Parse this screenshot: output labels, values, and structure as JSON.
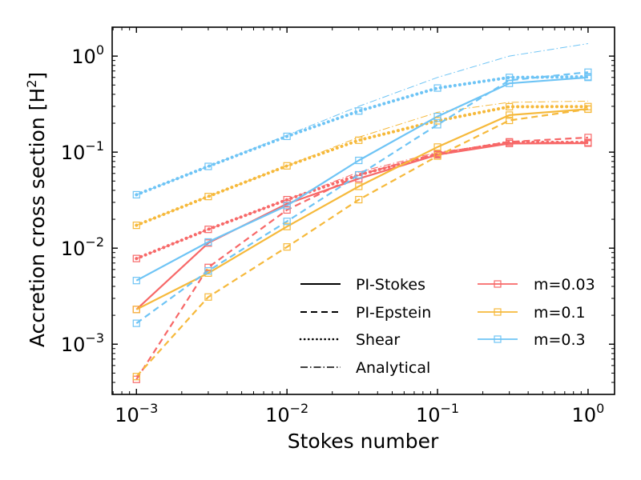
{
  "chart_data": {
    "type": "line",
    "xlabel": "Stokes number",
    "ylabel": "Accretion cross section [H",
    "ylabel_sup": "2",
    "ylabel_end": "]",
    "xscale": "log",
    "yscale": "log",
    "xlim": [
      0.00069,
      1.5
    ],
    "ylim": [
      0.0003,
      2.0
    ],
    "xticks": [
      {
        "value": 0.001,
        "base": "10",
        "exp": "−3"
      },
      {
        "value": 0.01,
        "base": "10",
        "exp": "−2"
      },
      {
        "value": 0.1,
        "base": "10",
        "exp": "−1"
      },
      {
        "value": 1,
        "base": "10",
        "exp": "0"
      }
    ],
    "yticks": [
      {
        "value": 0.001,
        "base": "10",
        "exp": "−3"
      },
      {
        "value": 0.01,
        "base": "10",
        "exp": "−2"
      },
      {
        "value": 0.1,
        "base": "10",
        "exp": "−1"
      },
      {
        "value": 1,
        "base": "10",
        "exp": "0"
      }
    ],
    "x": [
      0.001,
      0.003,
      0.01,
      0.03,
      0.1,
      0.3,
      1
    ],
    "colors": {
      "m=0.03": "#f76868",
      "m=0.1": "#f6b93b",
      "m=0.3": "#6ec4f5"
    },
    "series": [
      {
        "name": "PI-Stokes m=0.03",
        "mass": "m=0.03",
        "style": "solid",
        "values": [
          0.0023,
          0.0113,
          0.029,
          0.053,
          0.094,
          0.123,
          0.124
        ]
      },
      {
        "name": "PI-Epstein m=0.03",
        "mass": "m=0.03",
        "style": "dashed",
        "values": [
          0.00043,
          0.0063,
          0.025,
          0.058,
          0.097,
          0.128,
          0.142
        ]
      },
      {
        "name": "Shear m=0.03",
        "mass": "m=0.03",
        "style": "dotted",
        "values": [
          0.0078,
          0.0157,
          0.032,
          0.058,
          0.095,
          0.127,
          0.126
        ]
      },
      {
        "name": "Analytical m=0.03",
        "mass": "m=0.03",
        "style": "dashdot",
        "values": [
          0.0078,
          0.0157,
          0.032,
          0.062,
          0.1,
          0.125,
          0.128
        ]
      },
      {
        "name": "PI-Stokes m=0.1",
        "mass": "m=0.1",
        "style": "solid",
        "values": [
          0.0023,
          0.0055,
          0.0168,
          0.044,
          0.113,
          0.243,
          0.281
        ]
      },
      {
        "name": "PI-Epstein m=0.1",
        "mass": "m=0.1",
        "style": "dashed",
        "values": [
          0.00046,
          0.0031,
          0.0103,
          0.032,
          0.091,
          0.214,
          0.28
        ]
      },
      {
        "name": "Shear m=0.1",
        "mass": "m=0.1",
        "style": "dotted",
        "values": [
          0.0173,
          0.0345,
          0.072,
          0.133,
          0.212,
          0.297,
          0.298
        ]
      },
      {
        "name": "Analytical m=0.1",
        "mass": "m=0.1",
        "style": "dashdot",
        "values": [
          0.0173,
          0.0345,
          0.072,
          0.143,
          0.26,
          0.33,
          0.34
        ]
      },
      {
        "name": "PI-Stokes m=0.3",
        "mass": "m=0.3",
        "style": "solid",
        "values": [
          0.0046,
          0.0116,
          0.0278,
          0.082,
          0.235,
          0.52,
          0.6
        ]
      },
      {
        "name": "PI-Epstein m=0.3",
        "mass": "m=0.3",
        "style": "dashed",
        "values": [
          0.00165,
          0.0058,
          0.019,
          0.058,
          0.193,
          0.56,
          0.68
        ]
      },
      {
        "name": "Shear m=0.3",
        "mass": "m=0.3",
        "style": "dotted",
        "values": [
          0.036,
          0.071,
          0.146,
          0.268,
          0.465,
          0.6,
          0.61
        ]
      },
      {
        "name": "Analytical m=0.3",
        "mass": "m=0.3",
        "style": "dashdot",
        "values": [
          0.036,
          0.071,
          0.15,
          0.3,
          0.6,
          1.0,
          1.35
        ]
      }
    ],
    "legend": {
      "location": "lower right",
      "line_styles": [
        {
          "label": "PI-Stokes",
          "style": "solid"
        },
        {
          "label": "PI-Epstein",
          "style": "dashed"
        },
        {
          "label": "Shear",
          "style": "dotted"
        },
        {
          "label": "Analytical",
          "style": "dashdot"
        }
      ],
      "masses": [
        {
          "label": "m=0.03",
          "color": "#f76868"
        },
        {
          "label": "m=0.1",
          "color": "#f6b93b"
        },
        {
          "label": "m=0.3",
          "color": "#6ec4f5"
        }
      ]
    }
  }
}
